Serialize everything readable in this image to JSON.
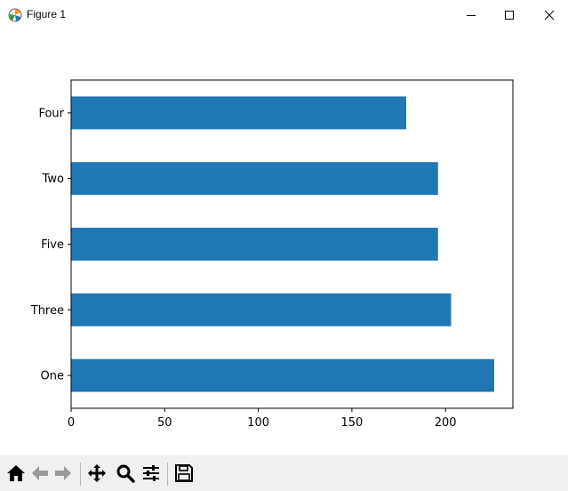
{
  "window": {
    "title": "Figure 1",
    "icon": "matplotlib-icon",
    "controls": [
      "minimize-icon",
      "maximize-icon",
      "close-icon"
    ]
  },
  "toolbar": {
    "buttons": [
      {
        "name": "home",
        "icon": "home-icon"
      },
      {
        "name": "back",
        "icon": "arrow-left-icon"
      },
      {
        "name": "forward",
        "icon": "arrow-right-icon"
      },
      {
        "name": "pan",
        "icon": "move-icon"
      },
      {
        "name": "zoom",
        "icon": "magnifier-icon"
      },
      {
        "name": "configure-subplots",
        "icon": "sliders-icon"
      },
      {
        "name": "save",
        "icon": "floppy-disk-icon"
      }
    ]
  },
  "chart_data": {
    "type": "bar",
    "orientation": "horizontal",
    "categories": [
      "One",
      "Three",
      "Five",
      "Two",
      "Four"
    ],
    "values": [
      226,
      203,
      196,
      196,
      179
    ],
    "title": "",
    "xlabel": "",
    "ylabel": "",
    "xlim": [
      0,
      236
    ],
    "xticks": [
      0,
      50,
      100,
      150,
      200
    ],
    "grid": false,
    "bar_color": "#1f77b4"
  }
}
